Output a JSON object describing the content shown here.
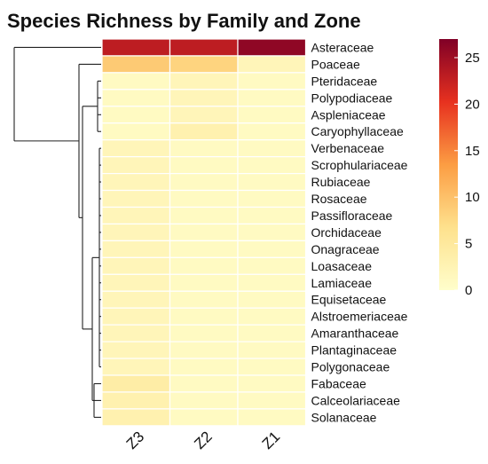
{
  "chart_data": {
    "type": "heatmap",
    "title": "Species Richness by Family and Zone",
    "columns": [
      "Z3",
      "Z2",
      "Z1"
    ],
    "rows": [
      "Asteraceae",
      "Poaceae",
      "Pteridaceae",
      "Polypodiaceae",
      "Aspleniaceae",
      "Caryophyllaceae",
      "Verbenaceae",
      "Scrophulariaceae",
      "Rubiaceae",
      "Rosaceae",
      "Passifloraceae",
      "Orchidaceae",
      "Onagraceae",
      "Loasaceae",
      "Lamiaceae",
      "Equisetaceae",
      "Alstroemeriaceae",
      "Amaranthaceae",
      "Plantaginaceae",
      "Polygonaceae",
      "Fabaceae",
      "Calceolariaceae",
      "Solanaceae"
    ],
    "values": [
      [
        23,
        23,
        26
      ],
      [
        9,
        8,
        2
      ],
      [
        1,
        2,
        1
      ],
      [
        1,
        2,
        1
      ],
      [
        1,
        2,
        1
      ],
      [
        1,
        3,
        1
      ],
      [
        2,
        1,
        1
      ],
      [
        2,
        1,
        1
      ],
      [
        2,
        1,
        1
      ],
      [
        2,
        1,
        1
      ],
      [
        2,
        1,
        1
      ],
      [
        2,
        1,
        1
      ],
      [
        2,
        1,
        1
      ],
      [
        2,
        1,
        1
      ],
      [
        2,
        1,
        1
      ],
      [
        2,
        1,
        1
      ],
      [
        2,
        1,
        1
      ],
      [
        2,
        1,
        1
      ],
      [
        2,
        1,
        1
      ],
      [
        2,
        1,
        1
      ],
      [
        4,
        1,
        1
      ],
      [
        3,
        1,
        1
      ],
      [
        3,
        1,
        1
      ]
    ],
    "colorbar": {
      "min": 0,
      "max": 27,
      "ticks": [
        0,
        5,
        10,
        15,
        20,
        25
      ]
    },
    "color_scale": [
      "#fffecb",
      "#fee18d",
      "#fc9d43",
      "#e7311f",
      "#800026"
    ],
    "grid_color": "#ffffff"
  }
}
